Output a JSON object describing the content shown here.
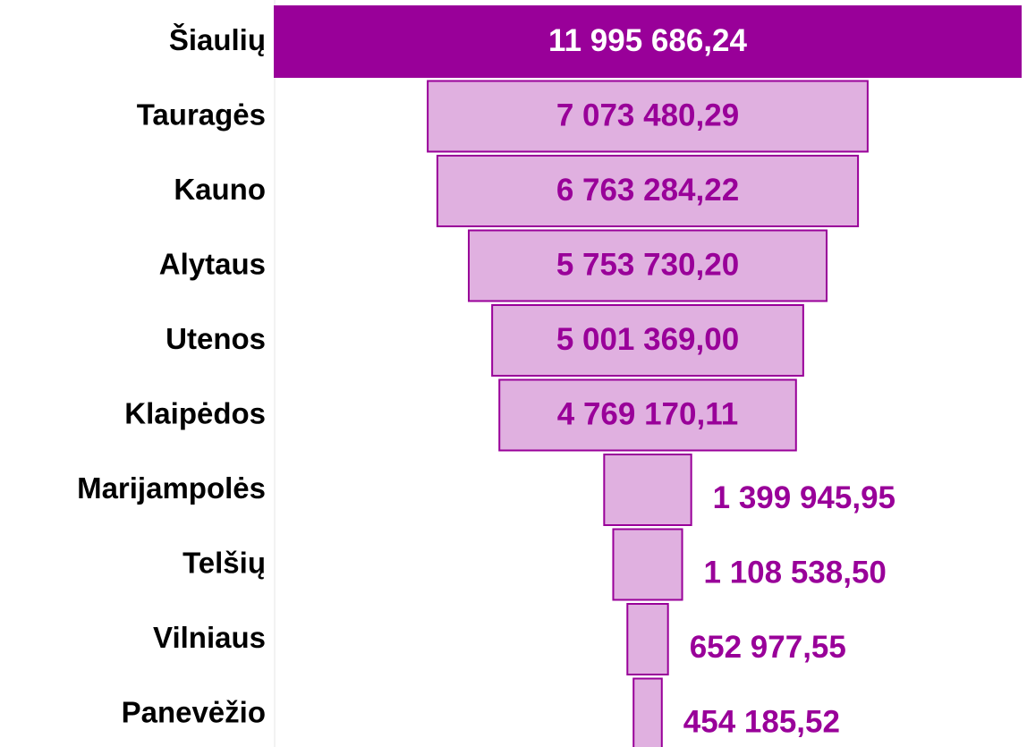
{
  "chart_data": {
    "type": "funnel",
    "categories": [
      "Šiaulių",
      "Tauragės",
      "Kauno",
      "Alytaus",
      "Utenos",
      "Klaipėdos",
      "Marijampolės",
      "Telšių",
      "Vilniaus",
      "Panevėžio"
    ],
    "values": [
      11995686.24,
      7073480.29,
      6763284.22,
      5753730.2,
      5001369.0,
      4769170.11,
      1399945.95,
      1108538.5,
      652977.55,
      454185.52
    ],
    "value_labels": [
      "11 995 686,24",
      "7 073 480,29",
      "6 763 284,22",
      "5 753 730,20",
      "5 001 369,00",
      "4 769 170,11",
      "1 399 945,95",
      "1 108 538,50",
      "652 977,55",
      "454 185,52"
    ],
    "colors": [
      "#990099",
      "#e0b0e0",
      "#e0b0e0",
      "#e0b0e0",
      "#e0b0e0",
      "#e0b0e0",
      "#e0b0e0",
      "#e0b0e0",
      "#e0b0e0",
      "#e0b0e0"
    ],
    "edge_color": "#990099",
    "label_colors": [
      "#ffffff",
      "#990099",
      "#990099",
      "#990099",
      "#990099",
      "#990099",
      "#990099",
      "#990099",
      "#990099",
      "#990099"
    ]
  }
}
